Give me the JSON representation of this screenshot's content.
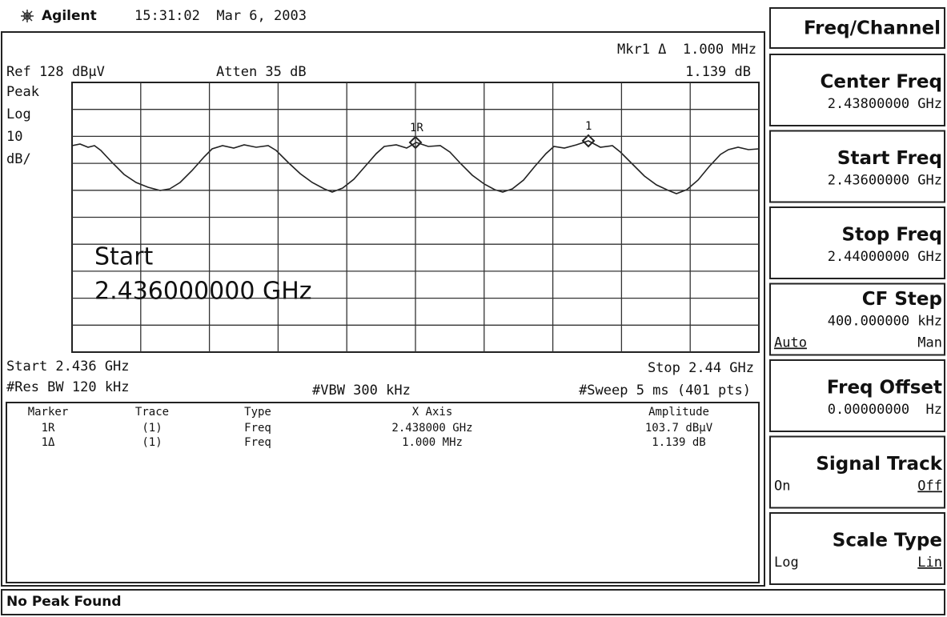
{
  "header": {
    "brand": "Agilent",
    "timestamp": "15:31:02  Mar 6, 2003"
  },
  "screen": {
    "mkr_readout": "Mkr1 Δ  1.000 MHz",
    "ref": "Ref 128 dBµV",
    "atten": "Atten 35 dB",
    "mkr_value": "1.139 dB",
    "scale": [
      "Peak",
      "Log",
      "10",
      "dB/"
    ],
    "markers": [
      "1R",
      "1"
    ],
    "active_function": [
      "Start",
      "2.436000000 GHz"
    ],
    "start": "Start 2.436 GHz",
    "stop": "Stop 2.44 GHz",
    "rbw": "#Res BW 120 kHz",
    "vbw": "#VBW 300 kHz",
    "sweep": "#Sweep 5 ms (401 pts)"
  },
  "marker_table": {
    "columns": [
      "Marker",
      "Trace",
      "Type",
      "X Axis",
      "Amplitude"
    ],
    "rows": [
      [
        "1R",
        "(1)",
        "Freq",
        "2.438000 GHz",
        "103.7 dBµV"
      ],
      [
        "1Δ",
        "(1)",
        "Freq",
        "1.000 MHz",
        "1.139 dB"
      ]
    ]
  },
  "status": "No Peak Found",
  "menu": {
    "title": "Freq/Channel",
    "keys": [
      {
        "label": "Center Freq",
        "value": "2.43800000 GHz"
      },
      {
        "label": "Start Freq",
        "value": "2.43600000 GHz"
      },
      {
        "label": "Stop Freq",
        "value": "2.44000000 GHz"
      },
      {
        "label": "CF Step",
        "value": "400.000000 kHz",
        "options": [
          "Auto",
          "Man"
        ],
        "selected": 0
      },
      {
        "label": "Freq Offset",
        "value": "0.00000000  Hz"
      },
      {
        "label": "Signal Track",
        "options": [
          "On",
          "Off"
        ],
        "selected": 1
      },
      {
        "label": "Scale Type",
        "options": [
          "Log",
          "Lin"
        ],
        "selected": 1
      }
    ]
  }
}
